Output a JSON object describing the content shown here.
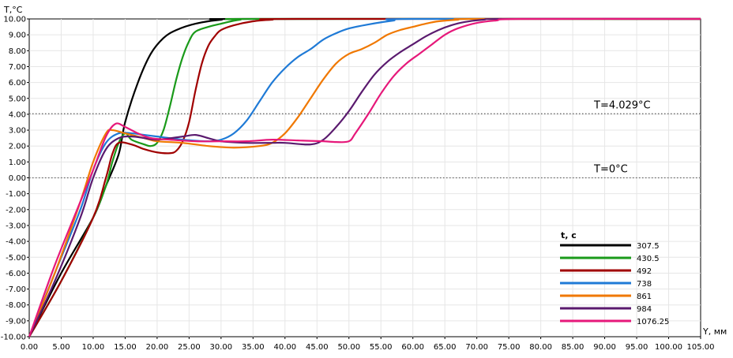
{
  "chart_data": {
    "type": "line",
    "xlabel": "Y, мм",
    "ylabel": "T,°C",
    "xlim": [
      0,
      105
    ],
    "ylim": [
      -10,
      10
    ],
    "grid": true,
    "legend_position": "bottom-right",
    "x_tick_labels": [
      "0.00",
      "5.00",
      "10.00",
      "15.00",
      "20.00",
      "25.00",
      "30.00",
      "35.00",
      "40.00",
      "45.00",
      "50.00",
      "55.00",
      "60.00",
      "65.00",
      "70.00",
      "75.00",
      "80.00",
      "85.00",
      "90.00",
      "95.00",
      "100.00",
      "105.00"
    ],
    "y_tick_labels": [
      "10.00",
      "9.00",
      "8.00",
      "7.00",
      "6.00",
      "5.00",
      "4.00",
      "3.00",
      "2.00",
      "1.00",
      "0.00",
      "-1.00",
      "-2.00",
      "-3.00",
      "-4.00",
      "-5.00",
      "-6.00",
      "-7.00",
      "-8.00",
      "-9.00",
      "-10.00"
    ],
    "reference_lines": [
      {
        "value": 4.029,
        "label": "T=4.029°C"
      },
      {
        "value": 0,
        "label": "T=0°C"
      }
    ],
    "legend_title": "t, c",
    "series": [
      {
        "name": "307.5",
        "color": "#000000",
        "points": [
          [
            0,
            -10
          ],
          [
            5,
            -6
          ],
          [
            10,
            -2.5
          ],
          [
            12,
            -0.5
          ],
          [
            14,
            1.5
          ],
          [
            15,
            3.5
          ],
          [
            17,
            6
          ],
          [
            19,
            7.8
          ],
          [
            21,
            8.8
          ],
          [
            23,
            9.3
          ],
          [
            26,
            9.7
          ],
          [
            30,
            9.95
          ],
          [
            35,
            10
          ],
          [
            105,
            10
          ]
        ]
      },
      {
        "name": "430.5",
        "color": "#1a9a1a",
        "points": [
          [
            0,
            -10
          ],
          [
            5,
            -6.5
          ],
          [
            10,
            -2.5
          ],
          [
            12,
            -0.5
          ],
          [
            13,
            1
          ],
          [
            14,
            2.2
          ],
          [
            15,
            2.8
          ],
          [
            16,
            2.4
          ],
          [
            18,
            2.1
          ],
          [
            19,
            2
          ],
          [
            20,
            2.2
          ],
          [
            21,
            3
          ],
          [
            22,
            4.5
          ],
          [
            23,
            6.2
          ],
          [
            24,
            7.6
          ],
          [
            25,
            8.6
          ],
          [
            26,
            9.2
          ],
          [
            28,
            9.5
          ],
          [
            30,
            9.7
          ],
          [
            33,
            9.95
          ],
          [
            37,
            10
          ],
          [
            105,
            10
          ]
        ]
      },
      {
        "name": "492",
        "color": "#a00000",
        "points": [
          [
            0,
            -10
          ],
          [
            5,
            -6.5
          ],
          [
            10,
            -2.5
          ],
          [
            12,
            0
          ],
          [
            13,
            1.5
          ],
          [
            14,
            2.2
          ],
          [
            16,
            2.1
          ],
          [
            18,
            1.8
          ],
          [
            20,
            1.6
          ],
          [
            22,
            1.55
          ],
          [
            23,
            1.7
          ],
          [
            24,
            2.3
          ],
          [
            25,
            3.5
          ],
          [
            26,
            5.5
          ],
          [
            27,
            7.2
          ],
          [
            28,
            8.3
          ],
          [
            29,
            8.9
          ],
          [
            30,
            9.3
          ],
          [
            32,
            9.6
          ],
          [
            35,
            9.85
          ],
          [
            38,
            9.95
          ],
          [
            42,
            10
          ],
          [
            105,
            10
          ]
        ]
      },
      {
        "name": "738",
        "color": "#1f7ad6",
        "points": [
          [
            0,
            -10
          ],
          [
            4,
            -6
          ],
          [
            8,
            -2
          ],
          [
            10,
            0.5
          ],
          [
            12,
            2.2
          ],
          [
            14,
            2.8
          ],
          [
            16,
            2.8
          ],
          [
            18,
            2.7
          ],
          [
            20,
            2.6
          ],
          [
            24,
            2.4
          ],
          [
            28,
            2.3
          ],
          [
            30,
            2.4
          ],
          [
            32,
            2.8
          ],
          [
            34,
            3.6
          ],
          [
            36,
            4.8
          ],
          [
            38,
            6
          ],
          [
            40,
            6.9
          ],
          [
            42,
            7.6
          ],
          [
            44,
            8.1
          ],
          [
            46,
            8.7
          ],
          [
            48,
            9.1
          ],
          [
            50,
            9.4
          ],
          [
            53,
            9.65
          ],
          [
            57,
            9.9
          ],
          [
            60,
            10
          ],
          [
            105,
            10
          ]
        ]
      },
      {
        "name": "861",
        "color": "#f07800",
        "points": [
          [
            0,
            -10
          ],
          [
            4,
            -6
          ],
          [
            8,
            -1.5
          ],
          [
            10,
            1
          ],
          [
            12,
            2.8
          ],
          [
            13,
            3
          ],
          [
            15,
            2.8
          ],
          [
            18,
            2.5
          ],
          [
            20,
            2.3
          ],
          [
            24,
            2.2
          ],
          [
            28,
            2
          ],
          [
            32,
            1.9
          ],
          [
            36,
            2
          ],
          [
            38,
            2.2
          ],
          [
            40,
            2.8
          ],
          [
            42,
            3.8
          ],
          [
            44,
            5
          ],
          [
            46,
            6.2
          ],
          [
            48,
            7.2
          ],
          [
            50,
            7.8
          ],
          [
            52,
            8.1
          ],
          [
            54,
            8.5
          ],
          [
            56,
            9
          ],
          [
            58,
            9.3
          ],
          [
            60,
            9.5
          ],
          [
            62,
            9.7
          ],
          [
            64,
            9.85
          ],
          [
            67,
            9.95
          ],
          [
            70,
            10
          ],
          [
            105,
            10
          ]
        ]
      },
      {
        "name": "984",
        "color": "#5a1a6e",
        "points": [
          [
            0,
            -10
          ],
          [
            4,
            -6.5
          ],
          [
            8,
            -2.5
          ],
          [
            10,
            0
          ],
          [
            12,
            1.8
          ],
          [
            14,
            2.5
          ],
          [
            16,
            2.6
          ],
          [
            18,
            2.5
          ],
          [
            20,
            2.4
          ],
          [
            24,
            2.6
          ],
          [
            26,
            2.7
          ],
          [
            28,
            2.5
          ],
          [
            30,
            2.3
          ],
          [
            34,
            2.2
          ],
          [
            38,
            2.2
          ],
          [
            40,
            2.2
          ],
          [
            44,
            2.1
          ],
          [
            46,
            2.4
          ],
          [
            48,
            3.2
          ],
          [
            50,
            4.2
          ],
          [
            52,
            5.4
          ],
          [
            54,
            6.5
          ],
          [
            56,
            7.3
          ],
          [
            58,
            7.9
          ],
          [
            60,
            8.4
          ],
          [
            62,
            8.9
          ],
          [
            64,
            9.3
          ],
          [
            66,
            9.6
          ],
          [
            68,
            9.8
          ],
          [
            71,
            9.95
          ],
          [
            75,
            10
          ],
          [
            105,
            10
          ]
        ]
      },
      {
        "name": "1076.25",
        "color": "#e6187a",
        "points": [
          [
            0,
            -10
          ],
          [
            4,
            -5.5
          ],
          [
            8,
            -1.5
          ],
          [
            10,
            0.5
          ],
          [
            12,
            2.6
          ],
          [
            13.5,
            3.4
          ],
          [
            15,
            3.2
          ],
          [
            17,
            2.8
          ],
          [
            19,
            2.5
          ],
          [
            22,
            2.4
          ],
          [
            26,
            2.3
          ],
          [
            30,
            2.3
          ],
          [
            34,
            2.3
          ],
          [
            38,
            2.4
          ],
          [
            42,
            2.35
          ],
          [
            46,
            2.3
          ],
          [
            48,
            2.25
          ],
          [
            50,
            2.3
          ],
          [
            51,
            2.8
          ],
          [
            53,
            4
          ],
          [
            55,
            5.3
          ],
          [
            57,
            6.4
          ],
          [
            59,
            7.2
          ],
          [
            61,
            7.8
          ],
          [
            63,
            8.4
          ],
          [
            65,
            9
          ],
          [
            67,
            9.4
          ],
          [
            70,
            9.75
          ],
          [
            73,
            9.9
          ],
          [
            77,
            10
          ],
          [
            105,
            10
          ]
        ]
      }
    ]
  }
}
